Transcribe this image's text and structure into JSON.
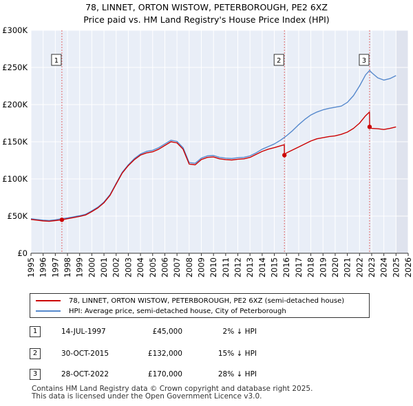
{
  "title_line1": "78, LINNET, ORTON WISTOW, PETERBOROUGH, PE2 6XZ",
  "title_line2": "Price paid vs. HM Land Registry's House Price Index (HPI)",
  "chart_data": {
    "type": "line",
    "xlim": [
      1995,
      2026
    ],
    "ylim": [
      0,
      300000
    ],
    "y_ticks": [
      {
        "value": 0,
        "label": "£0"
      },
      {
        "value": 50000,
        "label": "£50K"
      },
      {
        "value": 100000,
        "label": "£100K"
      },
      {
        "value": 150000,
        "label": "£150K"
      },
      {
        "value": 200000,
        "label": "£200K"
      },
      {
        "value": 250000,
        "label": "£250K"
      },
      {
        "value": 300000,
        "label": "£300K"
      }
    ],
    "x_ticks": [
      "1995",
      "1996",
      "1997",
      "1998",
      "1999",
      "2000",
      "2001",
      "2002",
      "2003",
      "2004",
      "2005",
      "2006",
      "2007",
      "2008",
      "2009",
      "2010",
      "2011",
      "2012",
      "2013",
      "2014",
      "2015",
      "2016",
      "2017",
      "2018",
      "2019",
      "2020",
      "2021",
      "2022",
      "2023",
      "2024",
      "2025",
      "2026"
    ],
    "forecast_start": 2025.0,
    "grid": true,
    "series": [
      {
        "name": "78, LINNET, ORTON WISTOW, PETERBOROUGH, PE2 6XZ (semi-detached house)",
        "color": "#cc0000",
        "x": [
          1995.0,
          1995.5,
          1996.0,
          1996.5,
          1997.0,
          1997.54,
          1998.0,
          1998.5,
          1999.0,
          1999.5,
          2000.0,
          2000.5,
          2001.0,
          2001.5,
          2002.0,
          2002.5,
          2003.0,
          2003.5,
          2004.0,
          2004.5,
          2005.0,
          2005.5,
          2006.0,
          2006.5,
          2007.0,
          2007.5,
          2008.0,
          2008.5,
          2009.0,
          2009.5,
          2010.0,
          2010.5,
          2011.0,
          2011.5,
          2012.0,
          2012.5,
          2013.0,
          2013.5,
          2014.0,
          2014.5,
          2015.0,
          2015.5,
          2015.82,
          2015.83,
          2016.0,
          2016.5,
          2017.0,
          2017.5,
          2018.0,
          2018.5,
          2019.0,
          2019.5,
          2020.0,
          2020.5,
          2021.0,
          2021.5,
          2022.0,
          2022.5,
          2022.82,
          2022.83,
          2023.0,
          2023.5,
          2024.0,
          2024.5,
          2025.0
        ],
        "y": [
          45500,
          44500,
          43500,
          43000,
          44000,
          45000,
          46500,
          48000,
          49500,
          51500,
          56000,
          61000,
          68000,
          78000,
          93000,
          108000,
          118000,
          126000,
          132000,
          135000,
          136500,
          140000,
          145000,
          150000,
          148500,
          140000,
          120000,
          119000,
          126000,
          129000,
          129500,
          127000,
          126000,
          125500,
          126500,
          127000,
          129000,
          133000,
          137000,
          140000,
          142000,
          144500,
          146000,
          132000,
          135000,
          139000,
          143000,
          147000,
          151000,
          154000,
          155500,
          157000,
          158000,
          160000,
          163000,
          168000,
          175000,
          185000,
          190000,
          170000,
          168000,
          167500,
          166500,
          168000,
          170000
        ]
      },
      {
        "name": "HPI: Average price, semi-detached house, City of Peterborough",
        "color": "#5588cc",
        "x": [
          1995.0,
          1995.5,
          1996.0,
          1996.5,
          1997.0,
          1997.5,
          1998.0,
          1998.5,
          1999.0,
          1999.5,
          2000.0,
          2000.5,
          2001.0,
          2001.5,
          2002.0,
          2002.5,
          2003.0,
          2003.5,
          2004.0,
          2004.5,
          2005.0,
          2005.5,
          2006.0,
          2006.5,
          2007.0,
          2007.5,
          2008.0,
          2008.5,
          2009.0,
          2009.5,
          2010.0,
          2010.5,
          2011.0,
          2011.5,
          2012.0,
          2012.5,
          2013.0,
          2013.5,
          2014.0,
          2014.5,
          2015.0,
          2015.5,
          2016.0,
          2016.5,
          2017.0,
          2017.5,
          2018.0,
          2018.5,
          2019.0,
          2019.5,
          2020.0,
          2020.5,
          2021.0,
          2021.5,
          2022.0,
          2022.5,
          2022.83,
          2023.0,
          2023.5,
          2024.0,
          2024.5,
          2025.0
        ],
        "y": [
          46500,
          45500,
          44500,
          44000,
          45000,
          46500,
          47500,
          49000,
          50500,
          52500,
          57000,
          62000,
          69000,
          79000,
          94000,
          109000,
          119000,
          127500,
          133500,
          137000,
          138500,
          142000,
          147000,
          152000,
          150500,
          142000,
          122000,
          121000,
          128000,
          131000,
          131500,
          129000,
          128000,
          127500,
          128500,
          129000,
          131000,
          135000,
          140000,
          143500,
          147000,
          152000,
          158000,
          165000,
          173000,
          180000,
          186000,
          190000,
          193000,
          195000,
          196500,
          198000,
          203000,
          212000,
          225000,
          240000,
          246000,
          243000,
          236000,
          233000,
          235000,
          239000
        ]
      }
    ],
    "sales": [
      {
        "num": "1",
        "x": 1997.54,
        "price": 45000
      },
      {
        "num": "2",
        "x": 2015.83,
        "price": 132000
      },
      {
        "num": "3",
        "x": 2022.83,
        "price": 170000
      }
    ]
  },
  "legend": {
    "red_label": "78, LINNET, ORTON WISTOW, PETERBOROUGH, PE2 6XZ (semi-detached house)",
    "blue_label": "HPI: Average price, semi-detached house, City of Peterborough"
  },
  "sales_table": [
    {
      "num": "1",
      "date": "14-JUL-1997",
      "price": "£45,000",
      "hpi": "2% ↓ HPI"
    },
    {
      "num": "2",
      "date": "30-OCT-2015",
      "price": "£132,000",
      "hpi": "15% ↓ HPI"
    },
    {
      "num": "3",
      "date": "28-OCT-2022",
      "price": "£170,000",
      "hpi": "28% ↓ HPI"
    }
  ],
  "footer": {
    "line1": "Contains HM Land Registry data © Crown copyright and database right 2025.",
    "line2": "This data is licensed under the Open Government Licence v3.0."
  }
}
